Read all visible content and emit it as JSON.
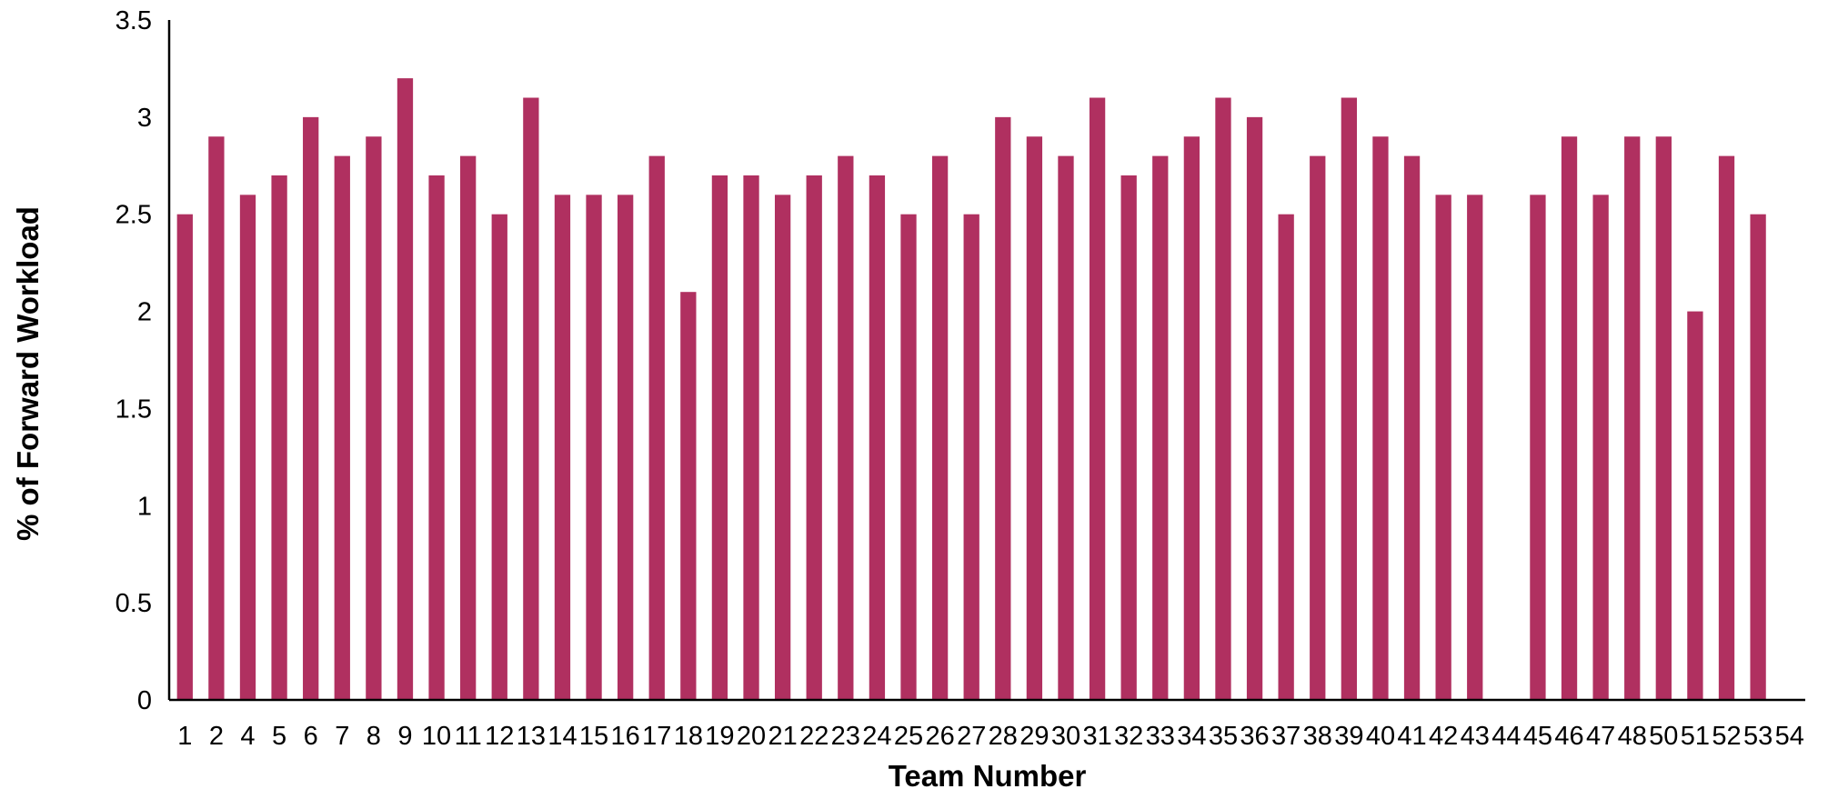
{
  "chart_data": {
    "type": "bar",
    "title": "",
    "xlabel": "Team Number",
    "ylabel": "% of Forward Workload",
    "ylim": [
      0,
      3.5
    ],
    "yticks": [
      0,
      0.5,
      1,
      1.5,
      2,
      2.5,
      3,
      3.5
    ],
    "ytick_labels": [
      "0",
      "0.5",
      "1",
      "1.5",
      "2",
      "2.5",
      "3",
      "3.5"
    ],
    "grid": false,
    "legend": "none",
    "bar_color": "#B03060",
    "categories": [
      "1",
      "2",
      "4",
      "5",
      "6",
      "7",
      "8",
      "9",
      "10",
      "11",
      "12",
      "13",
      "14",
      "15",
      "16",
      "17",
      "18",
      "19",
      "20",
      "21",
      "22",
      "23",
      "24",
      "25",
      "26",
      "27",
      "28",
      "29",
      "30",
      "31",
      "32",
      "33",
      "34",
      "35",
      "36",
      "37",
      "38",
      "39",
      "40",
      "41",
      "42",
      "43",
      "44",
      "45",
      "46",
      "47",
      "48",
      "50",
      "51",
      "52",
      "53",
      "54"
    ],
    "values": [
      2.5,
      2.9,
      2.6,
      2.7,
      3.0,
      2.8,
      2.9,
      3.2,
      2.7,
      2.8,
      2.5,
      3.1,
      2.6,
      2.6,
      2.6,
      2.8,
      2.1,
      2.7,
      2.7,
      2.6,
      2.7,
      2.8,
      2.7,
      2.5,
      2.8,
      2.5,
      3.0,
      2.9,
      2.8,
      3.1,
      2.7,
      2.8,
      2.9,
      3.1,
      3.0,
      2.5,
      2.8,
      3.1,
      2.9,
      2.8,
      2.6,
      2.6,
      null,
      2.6,
      2.9,
      2.6,
      2.9,
      2.9,
      2.0,
      2.8,
      2.5,
      null
    ]
  }
}
